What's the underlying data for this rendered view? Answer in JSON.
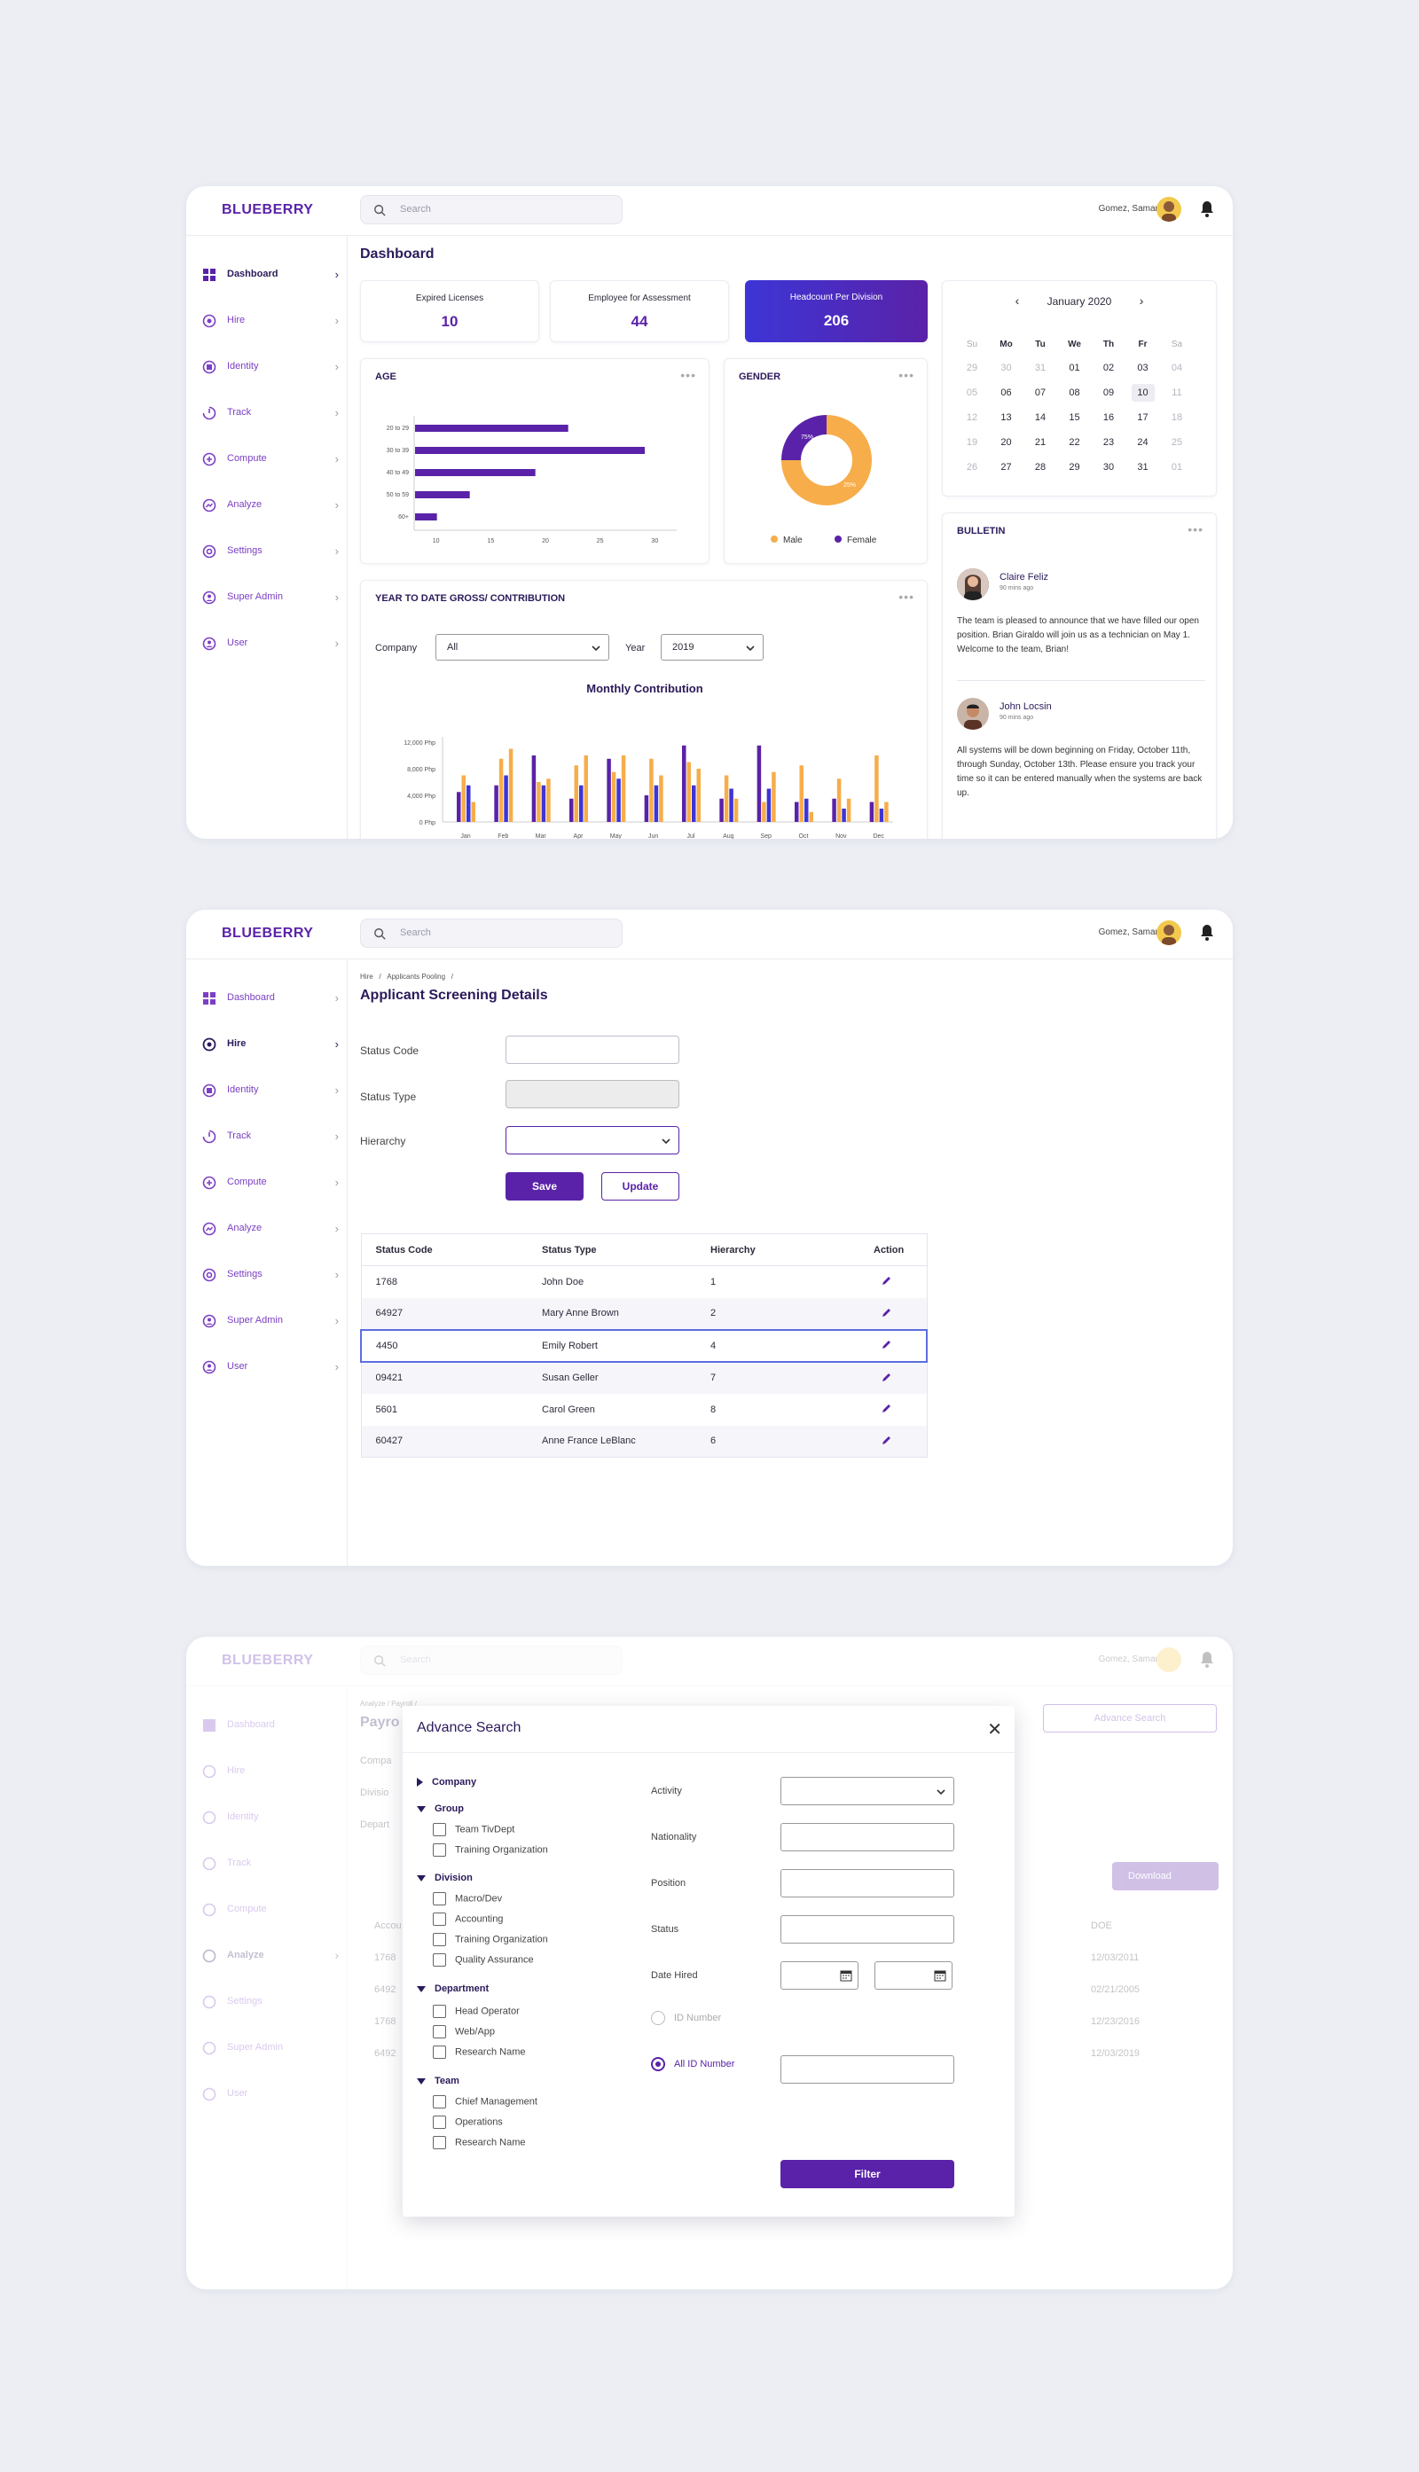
{
  "app": {
    "logo": "BLUEBERRY",
    "search_placeholder": "Search",
    "user_name": "Gomez, Samantha"
  },
  "nav": [
    {
      "label": "Dashboard",
      "icon": "dashboard-icon"
    },
    {
      "label": "Hire",
      "icon": "hire-icon"
    },
    {
      "label": "Identity",
      "icon": "identity-icon"
    },
    {
      "label": "Track",
      "icon": "track-icon"
    },
    {
      "label": "Compute",
      "icon": "compute-icon"
    },
    {
      "label": "Analyze",
      "icon": "analyze-icon"
    },
    {
      "label": "Settings",
      "icon": "settings-icon"
    },
    {
      "label": "Super Admin",
      "icon": "super-admin-icon"
    },
    {
      "label": "User",
      "icon": "user-icon"
    }
  ],
  "colors": {
    "brand": "#5A22A8",
    "accent_blue": "#3D35D6",
    "orange": "#F6AD4A",
    "bg": "#ECEEF4"
  },
  "dashboard": {
    "title": "Dashboard",
    "stats": [
      {
        "label": "Expired Licenses",
        "value": "10"
      },
      {
        "label": "Employee for Assessment",
        "value": "44"
      },
      {
        "label": "Headcount Per Division",
        "value": "206"
      }
    ],
    "age": {
      "title": "AGE"
    },
    "gender": {
      "title": "GENDER",
      "male_label": "Male",
      "female_label": "Female",
      "male_pct": "75%",
      "female_pct": "25%"
    },
    "ytd": {
      "title": "YEAR TO DATE GROSS/ CONTRIBUTION",
      "company_label": "Company",
      "company_value": "All",
      "year_label": "Year",
      "year_value": "2019"
    },
    "calendar": {
      "month": "January 2020",
      "weekdays": [
        "Su",
        "Mo",
        "Tu",
        "We",
        "Th",
        "Fr",
        "Sa"
      ],
      "weeks": [
        [
          "29",
          "30",
          "31",
          "01",
          "02",
          "03",
          "04"
        ],
        [
          "05",
          "06",
          "07",
          "08",
          "09",
          "10",
          "11"
        ],
        [
          "12",
          "13",
          "14",
          "15",
          "16",
          "17",
          "18"
        ],
        [
          "19",
          "20",
          "21",
          "22",
          "23",
          "24",
          "25"
        ],
        [
          "26",
          "27",
          "28",
          "29",
          "30",
          "31",
          "01"
        ]
      ],
      "selected": "10"
    },
    "bulletin": {
      "title": "BULLETIN",
      "posts": [
        {
          "name": "Claire Feliz",
          "time": "90 mins ago",
          "text": "The team is pleased to announce that we have filled our open position. Brian Giraldo will join us as a technician on May 1. Welcome to the team, Brian!"
        },
        {
          "name": "John Locsin",
          "time": "90 mins ago",
          "text": "All systems will be down beginning on Friday, October 11th, through Sunday, October 13th. Please ensure you track your time so it can be entered manually when the systems are back up."
        }
      ]
    }
  },
  "chart_data": [
    {
      "type": "bar",
      "orientation": "horizontal",
      "title": "AGE",
      "categories": [
        "20 to 29",
        "30 to 39",
        "40 to 49",
        "50 to 59",
        "60+"
      ],
      "values": [
        22,
        29,
        19,
        13,
        10
      ],
      "xticks": [
        10,
        15,
        20,
        25,
        30
      ],
      "xlim": [
        8,
        32
      ]
    },
    {
      "type": "pie",
      "title": "GENDER",
      "labels": [
        "Male",
        "Female"
      ],
      "values": [
        75,
        25
      ],
      "colors": [
        "#F6AD4A",
        "#5A22A8"
      ]
    },
    {
      "type": "bar",
      "title": "Monthly Contribution",
      "categories": [
        "Jan",
        "Feb",
        "Mar",
        "Apr",
        "May",
        "Jun",
        "Jul",
        "Aug",
        "Sep",
        "Oct",
        "Nov",
        "Dec"
      ],
      "yticks": [
        "0 Php",
        "4,000 Php",
        "8,000 Php",
        "12,000 Php"
      ],
      "ylim": [
        0,
        12000
      ],
      "series": [
        {
          "color": "#5A22A8",
          "values": [
            4500,
            5500,
            10000,
            3500,
            9500,
            4000,
            11500,
            3500,
            11500,
            3000,
            3500,
            3000
          ]
        },
        {
          "color": "#F6AD4A",
          "values": [
            7000,
            9500,
            6000,
            8500,
            7500,
            9500,
            9000,
            7000,
            3000,
            8500,
            6500,
            10000
          ]
        },
        {
          "color": "#3D35D6",
          "values": [
            5500,
            7000,
            5500,
            5500,
            6500,
            5500,
            5500,
            5000,
            5000,
            3500,
            2000,
            2000
          ]
        },
        {
          "color": "#F6AD4A",
          "values": [
            3000,
            11000,
            6500,
            10000,
            10000,
            7000,
            8000,
            3500,
            7500,
            1500,
            3500,
            3000
          ]
        }
      ]
    }
  ],
  "screening": {
    "breadcrumb": [
      "Hire",
      "/",
      "Applicants Pooling",
      "/"
    ],
    "title": "Applicant Screening Details",
    "fields": {
      "status_code": "Status Code",
      "status_type": "Status Type",
      "hierarchy": "Hierarchy"
    },
    "save": "Save",
    "update": "Update",
    "columns": [
      "Status Code",
      "Status Type",
      "Hierarchy",
      "Action"
    ],
    "rows": [
      [
        "1768",
        "John Doe",
        "1"
      ],
      [
        "64927",
        "Mary Anne Brown",
        "2"
      ],
      [
        "4450",
        "Emily Robert",
        "4"
      ],
      [
        "09421",
        "Susan Geller",
        "7"
      ],
      [
        "5601",
        "Carol Green",
        "8"
      ],
      [
        "60427",
        "Anne France LeBlanc",
        "6"
      ]
    ]
  },
  "advance": {
    "bg_breadcrumb": "Analyze  /  Payroll  /",
    "bg_title": "Payro",
    "bg_labels": [
      "Compa",
      "Divisio",
      "Depart"
    ],
    "bg_button": "Advance Search",
    "bg_download": "Download",
    "bg_col_left": "Accou",
    "bg_col_right": "DOE",
    "bg_rows_left": [
      "1768",
      "6492",
      "1768",
      "6492"
    ],
    "bg_rows_right": [
      "12/03/2011",
      "02/21/2005",
      "12/23/2016",
      "12/03/2019"
    ],
    "title": "Advance Search",
    "company": "Company",
    "groups": [
      {
        "label": "Group",
        "items": [
          "Team TivDept",
          "Training Organization"
        ]
      },
      {
        "label": "Division",
        "items": [
          "Macro/Dev",
          "Accounting",
          "Training Organization",
          "Quality Assurance"
        ]
      },
      {
        "label": "Department",
        "items": [
          "Head Operator",
          "Web/App",
          "Research Name"
        ]
      },
      {
        "label": "Team",
        "items": [
          "Chief Management",
          "Operations",
          "Research Name"
        ]
      }
    ],
    "fields": {
      "activity": "Activity",
      "nationality": "Nationality",
      "position": "Position",
      "status": "Status",
      "date_hired": "Date Hired",
      "id_number": "ID Number",
      "all_id_number": "All ID Number"
    },
    "filter": "Filter"
  }
}
